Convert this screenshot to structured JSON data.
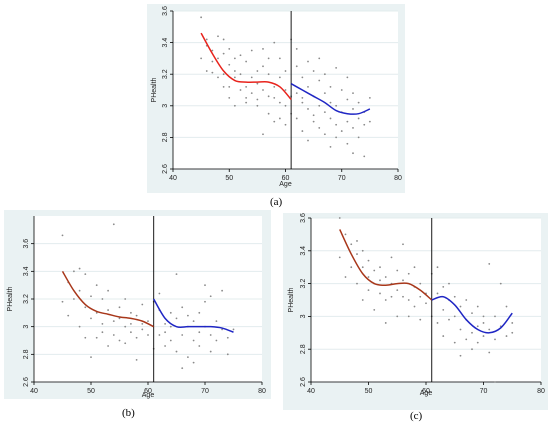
{
  "chart_data": [
    {
      "type": "scatter",
      "panel_label": "(a)",
      "xlabel": "Age",
      "ylabel": "PHealth",
      "xlim": [
        40,
        80
      ],
      "ylim": [
        2.6,
        3.6
      ],
      "xticks": [
        "40",
        "50",
        "60",
        "70",
        "80"
      ],
      "yticks": [
        "2.6",
        "2.8",
        "3",
        "3.2",
        "3.4",
        "3.6"
      ],
      "cutoff": 61,
      "grid": true,
      "fit_colors": {
        "left": "#e8231c",
        "right": "#1f26c4"
      },
      "fit_left": {
        "x": [
          45,
          47,
          49,
          51,
          53,
          55,
          57,
          59,
          61
        ],
        "y": [
          3.46,
          3.33,
          3.22,
          3.16,
          3.15,
          3.15,
          3.15,
          3.12,
          3.04
        ]
      },
      "fit_right": {
        "x": [
          61,
          63,
          65,
          67,
          69,
          71,
          73,
          75
        ],
        "y": [
          3.14,
          3.1,
          3.06,
          3.02,
          2.97,
          2.95,
          2.95,
          2.98
        ]
      },
      "points": [
        [
          45,
          3.56
        ],
        [
          45,
          3.3
        ],
        [
          46,
          3.42
        ],
        [
          46,
          3.22
        ],
        [
          46,
          3.38
        ],
        [
          47,
          3.28
        ],
        [
          47,
          3.35
        ],
        [
          47,
          3.21
        ],
        [
          48,
          3.44
        ],
        [
          48,
          3.18
        ],
        [
          48,
          3.3
        ],
        [
          49,
          3.33
        ],
        [
          49,
          3.42
        ],
        [
          49,
          3.12
        ],
        [
          49,
          3.2
        ],
        [
          50,
          3.12
        ],
        [
          50,
          3.26
        ],
        [
          50,
          3.05
        ],
        [
          50,
          3.36
        ],
        [
          51,
          3.3
        ],
        [
          51,
          3.0
        ],
        [
          51,
          3.18
        ],
        [
          51,
          3.22
        ],
        [
          52,
          3.1
        ],
        [
          52,
          3.32
        ],
        [
          52,
          3.2
        ],
        [
          53,
          3.05
        ],
        [
          53,
          3.12
        ],
        [
          53,
          3.28
        ],
        [
          53,
          3.02
        ],
        [
          54,
          3.18
        ],
        [
          54,
          3.08
        ],
        [
          54,
          3.35
        ],
        [
          55,
          3.04
        ],
        [
          55,
          3.22
        ],
        [
          55,
          3.14
        ],
        [
          55,
          3.0
        ],
        [
          56,
          3.1
        ],
        [
          56,
          3.25
        ],
        [
          56,
          3.36
        ],
        [
          56,
          2.82
        ],
        [
          57,
          3.2
        ],
        [
          57,
          3.06
        ],
        [
          57,
          2.95
        ],
        [
          57,
          3.3
        ],
        [
          58,
          3.12
        ],
        [
          58,
          3.4
        ],
        [
          58,
          2.9
        ],
        [
          58,
          3.05
        ],
        [
          59,
          3.18
        ],
        [
          59,
          3.02
        ],
        [
          59,
          3.3
        ],
        [
          59,
          2.92
        ],
        [
          60,
          3.1
        ],
        [
          60,
          2.88
        ],
        [
          60,
          3.22
        ],
        [
          60,
          3.0
        ],
        [
          61,
          3.06
        ],
        [
          61,
          2.95
        ],
        [
          61,
          3.42
        ],
        [
          62,
          3.25
        ],
        [
          62,
          3.08
        ],
        [
          62,
          2.92
        ],
        [
          62,
          3.36
        ],
        [
          63,
          3.02
        ],
        [
          63,
          2.84
        ],
        [
          63,
          3.18
        ],
        [
          63,
          3.05
        ],
        [
          64,
          3.28
        ],
        [
          64,
          2.98
        ],
        [
          64,
          3.12
        ],
        [
          64,
          2.78
        ],
        [
          65,
          3.06
        ],
        [
          65,
          2.9
        ],
        [
          65,
          3.22
        ],
        [
          65,
          2.94
        ],
        [
          66,
          3.16
        ],
        [
          66,
          2.86
        ],
        [
          66,
          3.0
        ],
        [
          66,
          3.3
        ],
        [
          67,
          2.96
        ],
        [
          67,
          3.08
        ],
        [
          67,
          2.82
        ],
        [
          67,
          3.2
        ],
        [
          68,
          2.92
        ],
        [
          68,
          3.02
        ],
        [
          68,
          2.74
        ],
        [
          68,
          3.12
        ],
        [
          69,
          3.0
        ],
        [
          69,
          2.88
        ],
        [
          69,
          3.24
        ],
        [
          69,
          2.8
        ],
        [
          70,
          2.96
        ],
        [
          70,
          3.1
        ],
        [
          70,
          2.84
        ],
        [
          71,
          2.9
        ],
        [
          71,
          3.04
        ],
        [
          71,
          2.76
        ],
        [
          71,
          3.18
        ],
        [
          72,
          2.98
        ],
        [
          72,
          2.86
        ],
        [
          72,
          3.08
        ],
        [
          72,
          2.7
        ],
        [
          73,
          2.92
        ],
        [
          73,
          2.8
        ],
        [
          73,
          3.02
        ],
        [
          74,
          2.88
        ],
        [
          74,
          2.68
        ],
        [
          74,
          2.96
        ],
        [
          75,
          2.9
        ],
        [
          75,
          3.05
        ]
      ]
    },
    {
      "type": "scatter",
      "panel_label": "(b)",
      "xlabel": "Age",
      "ylabel": "PHealth",
      "xlim": [
        40,
        80
      ],
      "ylim": [
        2.6,
        3.8
      ],
      "xticks": [
        "40",
        "50",
        "60",
        "70",
        "80"
      ],
      "yticks": [
        "2.6",
        "2.8",
        "3",
        "3.2",
        "3.4",
        "3.6"
      ],
      "cutoff": 61,
      "grid": true,
      "fit_colors": {
        "left": "#a8371a",
        "right": "#1f26c4"
      },
      "fit_left": {
        "x": [
          45,
          47,
          49,
          51,
          53,
          55,
          57,
          59,
          61
        ],
        "y": [
          3.4,
          3.26,
          3.16,
          3.11,
          3.09,
          3.07,
          3.06,
          3.04,
          3.0
        ]
      },
      "fit_right": {
        "x": [
          61,
          63,
          65,
          67,
          69,
          71,
          73,
          75
        ],
        "y": [
          3.2,
          3.06,
          3.0,
          3.0,
          3.0,
          3.0,
          2.99,
          2.96
        ]
      },
      "points": [
        [
          45,
          3.66
        ],
        [
          45,
          3.18
        ],
        [
          46,
          3.32
        ],
        [
          46,
          3.08
        ],
        [
          47,
          3.4
        ],
        [
          47,
          3.2
        ],
        [
          48,
          3.42
        ],
        [
          48,
          3.0
        ],
        [
          48,
          3.26
        ],
        [
          49,
          3.14
        ],
        [
          49,
          2.92
        ],
        [
          49,
          3.38
        ],
        [
          50,
          3.06
        ],
        [
          50,
          2.78
        ],
        [
          50,
          3.22
        ],
        [
          51,
          3.1
        ],
        [
          51,
          2.92
        ],
        [
          51,
          3.3
        ],
        [
          52,
          3.02
        ],
        [
          52,
          3.2
        ],
        [
          52,
          2.96
        ],
        [
          53,
          3.12
        ],
        [
          53,
          2.86
        ],
        [
          53,
          3.26
        ],
        [
          54,
          3.04
        ],
        [
          54,
          3.74
        ],
        [
          54,
          2.94
        ],
        [
          55,
          3.14
        ],
        [
          55,
          2.9
        ],
        [
          55,
          3.06
        ],
        [
          56,
          3.0
        ],
        [
          56,
          3.2
        ],
        [
          56,
          2.88
        ],
        [
          57,
          3.1
        ],
        [
          57,
          3.02
        ],
        [
          57,
          2.96
        ],
        [
          58,
          2.92
        ],
        [
          58,
          3.08
        ],
        [
          58,
          2.76
        ],
        [
          59,
          3.02
        ],
        [
          59,
          2.98
        ],
        [
          59,
          3.16
        ],
        [
          60,
          3.04
        ],
        [
          60,
          2.94
        ],
        [
          61,
          3.18
        ],
        [
          61,
          2.84
        ],
        [
          62,
          3.12
        ],
        [
          62,
          2.94
        ],
        [
          62,
          3.24
        ],
        [
          63,
          2.96
        ],
        [
          63,
          3.02
        ],
        [
          63,
          2.86
        ],
        [
          64,
          2.9
        ],
        [
          64,
          3.1
        ],
        [
          64,
          3.0
        ],
        [
          65,
          3.06
        ],
        [
          65,
          2.82
        ],
        [
          65,
          3.38
        ],
        [
          66,
          2.94
        ],
        [
          66,
          3.14
        ],
        [
          66,
          2.7
        ],
        [
          67,
          3.0
        ],
        [
          67,
          2.78
        ],
        [
          67,
          3.08
        ],
        [
          68,
          2.9
        ],
        [
          68,
          3.04
        ],
        [
          68,
          2.74
        ],
        [
          69,
          3.1
        ],
        [
          69,
          2.96
        ],
        [
          69,
          2.86
        ],
        [
          70,
          3.18
        ],
        [
          70,
          3.0
        ],
        [
          70,
          3.3
        ],
        [
          71,
          2.94
        ],
        [
          71,
          3.22
        ],
        [
          71,
          2.82
        ],
        [
          72,
          3.04
        ],
        [
          72,
          2.9
        ],
        [
          73,
          2.98
        ],
        [
          73,
          3.26
        ],
        [
          74,
          2.92
        ],
        [
          74,
          2.8
        ],
        [
          75,
          2.98
        ]
      ]
    },
    {
      "type": "scatter",
      "panel_label": "(c)",
      "xlabel": "Age",
      "ylabel": "PHealth",
      "xlim": [
        40,
        80
      ],
      "ylim": [
        2.6,
        3.6
      ],
      "xticks": [
        "40",
        "50",
        "60",
        "70",
        "80"
      ],
      "yticks": [
        "2.6",
        "2.8",
        "3",
        "3.2",
        "3.4",
        "3.6"
      ],
      "cutoff": 61,
      "grid": true,
      "fit_colors": {
        "left": "#a8371a",
        "right": "#1f26c4"
      },
      "fit_left": {
        "x": [
          45,
          47,
          49,
          51,
          53,
          55,
          57,
          59,
          61
        ],
        "y": [
          3.53,
          3.38,
          3.26,
          3.2,
          3.19,
          3.2,
          3.2,
          3.16,
          3.1
        ]
      },
      "fit_right": {
        "x": [
          61,
          63,
          65,
          67,
          69,
          71,
          73,
          75
        ],
        "y": [
          3.1,
          3.12,
          3.07,
          2.98,
          2.92,
          2.9,
          2.93,
          3.02
        ]
      },
      "points": [
        [
          45,
          3.6
        ],
        [
          45,
          3.36
        ],
        [
          46,
          3.5
        ],
        [
          46,
          3.24
        ],
        [
          47,
          3.44
        ],
        [
          47,
          3.3
        ],
        [
          48,
          3.38
        ],
        [
          48,
          3.2
        ],
        [
          48,
          3.46
        ],
        [
          49,
          3.3
        ],
        [
          49,
          3.1
        ],
        [
          49,
          3.4
        ],
        [
          50,
          3.24
        ],
        [
          50,
          3.16
        ],
        [
          50,
          3.34
        ],
        [
          51,
          3.2
        ],
        [
          51,
          3.04
        ],
        [
          51,
          3.28
        ],
        [
          52,
          3.14
        ],
        [
          52,
          3.3
        ],
        [
          52,
          3.22
        ],
        [
          53,
          3.1
        ],
        [
          53,
          3.24
        ],
        [
          53,
          2.96
        ],
        [
          54,
          3.2
        ],
        [
          54,
          3.12
        ],
        [
          54,
          3.36
        ],
        [
          55,
          3.16
        ],
        [
          55,
          3.0
        ],
        [
          55,
          3.28
        ],
        [
          56,
          3.22
        ],
        [
          56,
          3.12
        ],
        [
          56,
          3.44
        ],
        [
          57,
          3.1
        ],
        [
          57,
          3.26
        ],
        [
          57,
          3.0
        ],
        [
          58,
          3.18
        ],
        [
          58,
          3.06
        ],
        [
          58,
          3.3
        ],
        [
          59,
          3.12
        ],
        [
          59,
          3.2
        ],
        [
          59,
          2.98
        ],
        [
          60,
          3.08
        ],
        [
          60,
          3.14
        ],
        [
          61,
          3.0
        ],
        [
          61,
          3.26
        ],
        [
          62,
          3.14
        ],
        [
          62,
          2.96
        ],
        [
          62,
          3.3
        ],
        [
          63,
          3.04
        ],
        [
          63,
          3.18
        ],
        [
          63,
          2.88
        ],
        [
          64,
          3.1
        ],
        [
          64,
          2.98
        ],
        [
          64,
          3.2
        ],
        [
          65,
          3.0
        ],
        [
          65,
          2.84
        ],
        [
          65,
          3.12
        ],
        [
          66,
          2.92
        ],
        [
          66,
          3.06
        ],
        [
          66,
          2.76
        ],
        [
          67,
          2.98
        ],
        [
          67,
          3.1
        ],
        [
          67,
          2.86
        ],
        [
          68,
          2.9
        ],
        [
          68,
          3.02
        ],
        [
          68,
          2.8
        ],
        [
          69,
          2.94
        ],
        [
          69,
          3.06
        ],
        [
          69,
          2.84
        ],
        [
          70,
          2.88
        ],
        [
          70,
          3.0
        ],
        [
          70,
          2.96
        ],
        [
          71,
          2.92
        ],
        [
          71,
          3.32
        ],
        [
          71,
          2.78
        ],
        [
          72,
          2.86
        ],
        [
          72,
          3.0
        ],
        [
          72,
          2.6
        ],
        [
          73,
          2.94
        ],
        [
          73,
          3.2
        ],
        [
          74,
          2.88
        ],
        [
          74,
          3.06
        ],
        [
          75,
          2.9
        ],
        [
          75,
          2.96
        ]
      ]
    }
  ]
}
